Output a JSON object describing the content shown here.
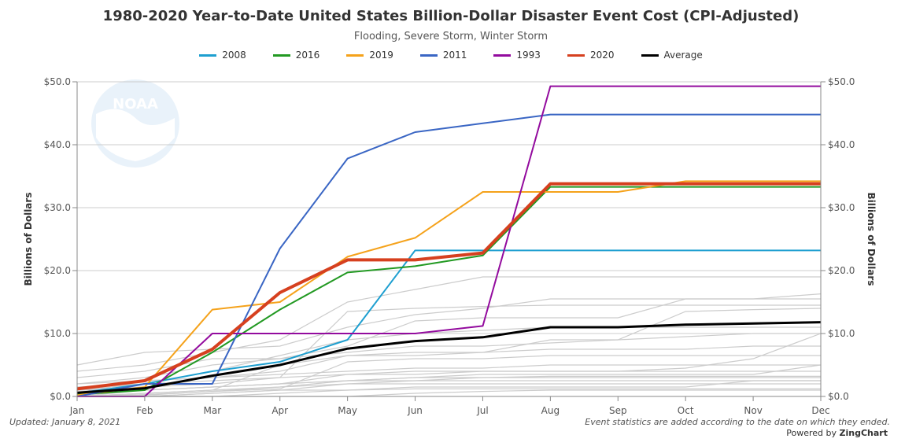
{
  "chart_data": {
    "type": "line",
    "title": "1980-2020 Year-to-Date United States Billion-Dollar Disaster Event Cost (CPI-Adjusted)",
    "subtitle": "Flooding, Severe Storm, Winter Storm",
    "ylabel": "Billions of Dollars",
    "ylabel_right": "Billions of Dollars",
    "categories": [
      "Jan",
      "Feb",
      "Mar",
      "Apr",
      "May",
      "Jun",
      "Jul",
      "Aug",
      "Sep",
      "Oct",
      "Nov",
      "Dec"
    ],
    "ylim": [
      0,
      50
    ],
    "yticks_left": [
      "$0.0",
      "$10.0",
      "$20.0",
      "$30.0",
      "$40.0",
      "$50.0"
    ],
    "yticks_right": [
      "$0.0",
      "$10.0",
      "$20.0",
      "$30.0",
      "$40.0",
      "$50.0"
    ],
    "grid": true,
    "legend_position": "top-center",
    "series": [
      {
        "name": "2008",
        "color": "#1e9fd0",
        "values": [
          0.5,
          2.0,
          4.0,
          5.5,
          9.0,
          23.2,
          23.2,
          23.2,
          23.2,
          23.2,
          23.2,
          23.2
        ]
      },
      {
        "name": "2016",
        "color": "#229922",
        "values": [
          0.3,
          1.0,
          7.0,
          13.8,
          19.7,
          20.7,
          22.4,
          33.3,
          33.3,
          33.3,
          33.3,
          33.3
        ]
      },
      {
        "name": "2019",
        "color": "#f5a21b",
        "values": [
          0.2,
          1.5,
          13.8,
          15.0,
          22.2,
          25.2,
          32.5,
          32.5,
          32.5,
          34.2,
          34.2,
          34.2
        ]
      },
      {
        "name": "2011",
        "color": "#3a66c4",
        "values": [
          0.0,
          2.0,
          2.0,
          23.5,
          37.8,
          42.0,
          43.4,
          44.8,
          44.8,
          44.8,
          44.8,
          44.8
        ]
      },
      {
        "name": "1993",
        "color": "#930b9e",
        "values": [
          0.0,
          0.0,
          10.0,
          10.0,
          10.0,
          10.0,
          11.2,
          49.3,
          49.3,
          49.3,
          49.3,
          49.3
        ]
      },
      {
        "name": "2020",
        "color": "#d6401f",
        "values": [
          1.2,
          2.5,
          7.5,
          16.5,
          21.7,
          21.7,
          22.8,
          33.8,
          33.8,
          33.8,
          33.8,
          33.8
        ]
      },
      {
        "name": "Average",
        "color": "#000000",
        "values": [
          0.6,
          1.3,
          3.3,
          5.0,
          7.6,
          8.8,
          9.4,
          11.0,
          11.0,
          11.4,
          11.6,
          11.8
        ]
      }
    ],
    "background_series_color": "#cccccc",
    "background_series": [
      [
        5.0,
        7.0,
        7.5,
        8.0,
        11.0,
        13.0,
        14.0,
        15.5,
        15.5,
        15.5,
        15.5,
        16.3
      ],
      [
        4.0,
        5.0,
        7.0,
        9.0,
        15.0,
        17.0,
        19.0,
        19.0,
        19.0,
        19.0,
        19.0,
        19.0
      ],
      [
        2.0,
        3.0,
        5.0,
        6.0,
        8.0,
        12.0,
        12.5,
        12.5,
        12.5,
        15.5,
        15.5,
        15.5
      ],
      [
        1.0,
        2.0,
        4.0,
        6.5,
        9.0,
        10.0,
        10.5,
        11.0,
        11.0,
        11.0,
        11.0,
        11.0
      ],
      [
        3.0,
        4.0,
        6.0,
        6.0,
        7.0,
        8.0,
        8.0,
        8.5,
        9.0,
        13.5,
        13.8,
        14.0
      ],
      [
        0.5,
        2.5,
        3.0,
        3.5,
        4.0,
        4.5,
        4.5,
        5.0,
        5.0,
        5.0,
        5.0,
        5.0
      ],
      [
        1.5,
        2.0,
        2.5,
        3.0,
        3.5,
        3.5,
        4.0,
        4.0,
        4.0,
        4.5,
        6.0,
        10.0
      ],
      [
        0.0,
        0.5,
        1.0,
        1.5,
        2.0,
        2.0,
        2.0,
        2.0,
        2.0,
        2.0,
        2.0,
        2.0
      ],
      [
        0.0,
        0.0,
        0.5,
        1.0,
        2.0,
        2.5,
        3.0,
        3.0,
        3.0,
        3.0,
        3.0,
        3.0
      ],
      [
        2.0,
        2.5,
        3.0,
        4.0,
        6.5,
        7.0,
        7.0,
        7.5,
        7.5,
        7.5,
        8.0,
        8.0
      ],
      [
        0.0,
        1.0,
        1.5,
        2.0,
        2.5,
        3.0,
        3.5,
        3.5,
        3.5,
        3.5,
        3.5,
        5.0
      ],
      [
        1.0,
        1.5,
        2.0,
        3.0,
        13.5,
        14.0,
        14.3,
        14.5,
        14.5,
        14.5,
        14.5,
        14.5
      ],
      [
        0.0,
        0.0,
        0.0,
        0.5,
        1.0,
        1.2,
        1.2,
        1.2,
        1.2,
        1.2,
        1.2,
        1.2
      ],
      [
        0.0,
        0.0,
        0.5,
        1.0,
        1.0,
        1.5,
        1.5,
        1.5,
        1.5,
        1.5,
        2.5,
        2.5
      ],
      [
        0.5,
        1.0,
        1.5,
        2.0,
        3.5,
        4.0,
        4.0,
        4.0,
        4.0,
        4.0,
        4.0,
        4.0
      ],
      [
        0.0,
        0.0,
        0.0,
        0.0,
        0.0,
        0.5,
        0.8,
        1.0,
        1.0,
        1.0,
        1.0,
        1.0
      ],
      [
        0.0,
        0.2,
        0.8,
        1.5,
        2.5,
        3.0,
        3.0,
        3.2,
        3.2,
        3.2,
        3.2,
        3.2
      ],
      [
        0.0,
        0.5,
        1.0,
        5.0,
        6.5,
        6.5,
        7.0,
        9.0,
        9.0,
        9.5,
        10.0,
        10.0
      ],
      [
        1.0,
        1.0,
        1.5,
        2.0,
        2.5,
        2.5,
        2.5,
        2.5,
        2.5,
        2.5,
        2.5,
        2.5
      ],
      [
        0.0,
        0.3,
        0.8,
        1.2,
        5.5,
        6.0,
        6.0,
        6.5,
        6.5,
        6.5,
        6.5,
        6.5
      ]
    ]
  },
  "watermark_text": "NOAA",
  "footer": {
    "updated": "Updated: January 8, 2021",
    "note": "Event statistics are added according to the date on which they ended.",
    "powered_prefix": "Powered by ",
    "powered_brand": "ZingChart"
  }
}
